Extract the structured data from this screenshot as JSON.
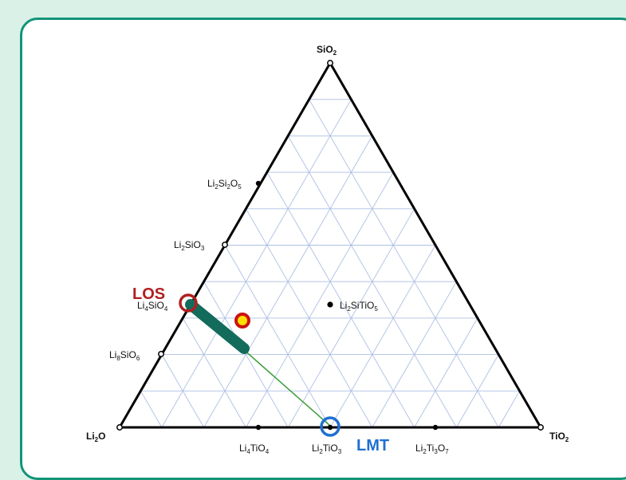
{
  "vertices": {
    "top": {
      "base": "SiO",
      "sub": "2"
    },
    "left": {
      "base": "Li",
      "sub": "2",
      "rest": "O"
    },
    "right": {
      "base": "TiO",
      "sub": "2"
    }
  },
  "compounds": {
    "li2si2o5": [
      "Li",
      "2",
      "Si",
      "2",
      "O",
      "5"
    ],
    "li2sio3": [
      "Li",
      "2",
      "SiO",
      "3"
    ],
    "li4sio4": [
      "Li",
      "4",
      "SiO",
      "4"
    ],
    "li8sio6": [
      "Li",
      "8",
      "SiO",
      "6"
    ],
    "li2sitio5": [
      "Li",
      "2",
      "SiTiO",
      "5"
    ],
    "li4tio4": [
      "Li",
      "4",
      "TiO",
      "4"
    ],
    "li2tio3": [
      "Li",
      "2",
      "TiO",
      "3"
    ],
    "li2ti3o7": [
      "Li",
      "2",
      "Ti",
      "3",
      "O",
      "7"
    ]
  },
  "highlights": {
    "los": {
      "label": "LOS",
      "color": "#b11f1f"
    },
    "lmt": {
      "label": "LMT",
      "color": "#1f6fd1"
    }
  },
  "colors": {
    "background": "#d9f1e7",
    "card_border": "#129479",
    "grid": "#aebfe3",
    "triangle": "#000000",
    "tie_line": "#3e9e3a",
    "bar": "#136b5c",
    "point_fill": "#ffe000",
    "point_ring": "#cc1111"
  }
}
